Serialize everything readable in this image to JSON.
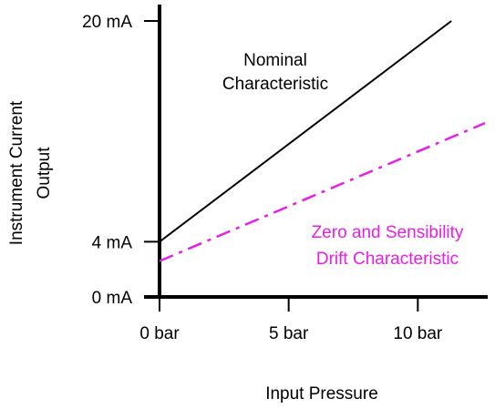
{
  "chart_data": {
    "type": "line",
    "title": "",
    "xlabel": "Input Pressure",
    "ylabel": [
      "Instrument Current",
      "Output"
    ],
    "x_ticks": [
      {
        "value": 0,
        "label": "0 bar"
      },
      {
        "value": 5,
        "label": "5 bar"
      },
      {
        "value": 10,
        "label": "10 bar"
      }
    ],
    "y_ticks": [
      {
        "value": 0,
        "label": "0 mA"
      },
      {
        "value": 4,
        "label": "4 mA"
      },
      {
        "value": 20,
        "label": "20 mA"
      }
    ],
    "xlim": [
      0,
      12.6
    ],
    "ylim": [
      0,
      20
    ],
    "grid": false,
    "legend": "none",
    "series": [
      {
        "label": [
          "Nominal",
          "Characteristic"
        ],
        "color": "#000000",
        "style": "solid",
        "points": [
          [
            0,
            4
          ],
          [
            11.3,
            20
          ]
        ]
      },
      {
        "label": [
          "Zero and Sensibility",
          "Drift  Characteristic"
        ],
        "color": "#e81ee8",
        "style": "dashdot",
        "points": [
          [
            0,
            2.6
          ],
          [
            12.6,
            12.6
          ]
        ]
      }
    ]
  }
}
